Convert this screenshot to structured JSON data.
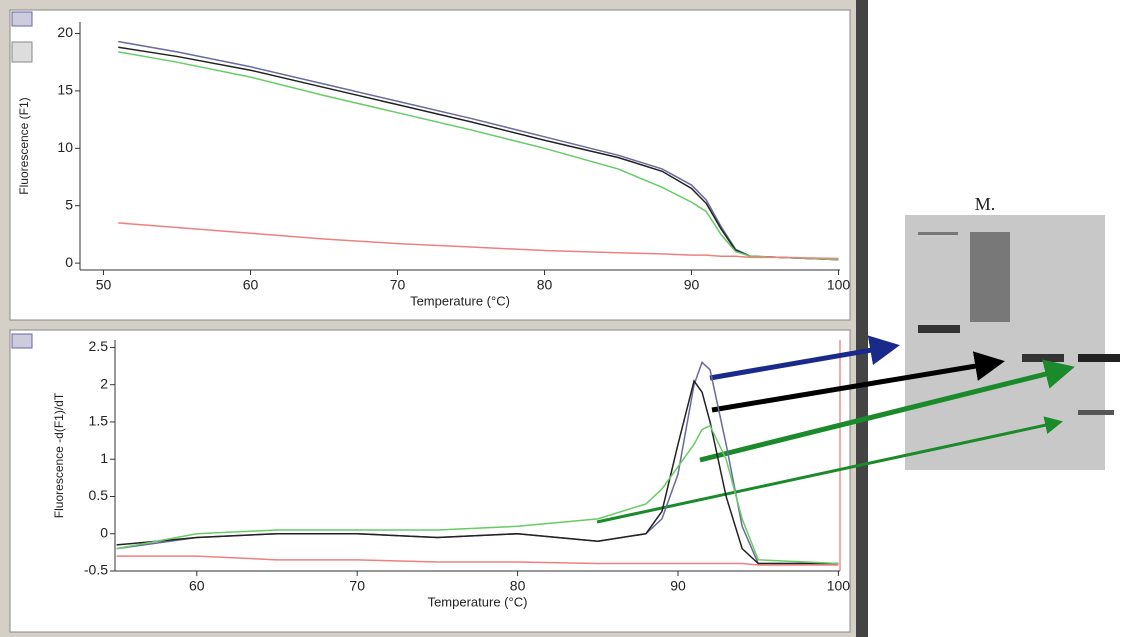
{
  "chart_data": [
    {
      "type": "line",
      "xlabel": "Temperature (°C)",
      "ylabel": "Fluorescence (F1)",
      "x": [
        51,
        55,
        60,
        65,
        70,
        75,
        80,
        85,
        88,
        90,
        91,
        92,
        93,
        94,
        96,
        100
      ],
      "series": [
        {
          "color": "#6a6a9e",
          "values": [
            19.3,
            18.4,
            17.1,
            15.6,
            14.1,
            12.6,
            11,
            9.4,
            8.2,
            6.8,
            5.5,
            3.2,
            1.2,
            0.6,
            0.5,
            0.3
          ]
        },
        {
          "color": "#222222",
          "values": [
            18.8,
            18,
            16.8,
            15.3,
            13.8,
            12.3,
            10.7,
            9.2,
            8,
            6.5,
            5.2,
            3,
            1.1,
            0.6,
            0.5,
            0.3
          ]
        },
        {
          "color": "#66cc66",
          "values": [
            18.4,
            17.5,
            16.2,
            14.6,
            13.1,
            11.6,
            10,
            8.2,
            6.6,
            5.3,
            4.5,
            2.5,
            1,
            0.6,
            0.5,
            0.3
          ]
        },
        {
          "color": "#ee8080",
          "values": [
            3.5,
            3.1,
            2.6,
            2.1,
            1.7,
            1.4,
            1.1,
            0.9,
            0.8,
            0.7,
            0.7,
            0.6,
            0.6,
            0.5,
            0.5,
            0.4
          ]
        }
      ],
      "xlim": [
        48.4,
        100.1
      ],
      "xticks": [
        50,
        60,
        70,
        80,
        90,
        100
      ],
      "ylim": [
        -0.6,
        21
      ],
      "yticks": [
        0,
        5,
        10,
        15,
        20
      ]
    },
    {
      "type": "line",
      "xlabel": "Temperature (°C)",
      "ylabel": "Fluorescence -d(F1)/dT",
      "x": [
        55,
        60,
        65,
        70,
        75,
        80,
        85,
        88,
        89,
        90,
        91,
        91.5,
        92,
        93,
        94,
        95,
        100
      ],
      "series": [
        {
          "color": "#6a6a9e",
          "values": [
            -0.2,
            -0.05,
            0,
            0,
            -0.05,
            0,
            -0.1,
            0,
            0.2,
            0.8,
            2,
            2.3,
            2.2,
            1.2,
            0.1,
            -0.4,
            -0.4
          ]
        },
        {
          "color": "#222222",
          "values": [
            -0.15,
            -0.05,
            0,
            0,
            -0.05,
            0,
            -0.1,
            0,
            0.3,
            1.2,
            2.05,
            1.9,
            1.5,
            0.5,
            -0.2,
            -0.4,
            -0.4
          ]
        },
        {
          "color": "#66cc66",
          "values": [
            -0.2,
            0,
            0.05,
            0.05,
            0.05,
            0.1,
            0.2,
            0.4,
            0.6,
            0.9,
            1.2,
            1.4,
            1.45,
            1,
            0.2,
            -0.35,
            -0.4
          ]
        },
        {
          "color": "#ee8080",
          "values": [
            -0.3,
            -0.3,
            -0.35,
            -0.35,
            -0.38,
            -0.38,
            -0.4,
            -0.4,
            -0.4,
            -0.4,
            -0.4,
            -0.4,
            -0.4,
            -0.4,
            -0.4,
            -0.42,
            -0.42
          ]
        }
      ],
      "xlim": [
        54.9,
        100.1
      ],
      "xticks": [
        60,
        70,
        80,
        90,
        100
      ],
      "ylim": [
        -0.5,
        2.6
      ],
      "yticks": [
        -0.5,
        0,
        0.5,
        1,
        1.5,
        2,
        2.5
      ]
    }
  ],
  "gel": {
    "label": "M."
  }
}
